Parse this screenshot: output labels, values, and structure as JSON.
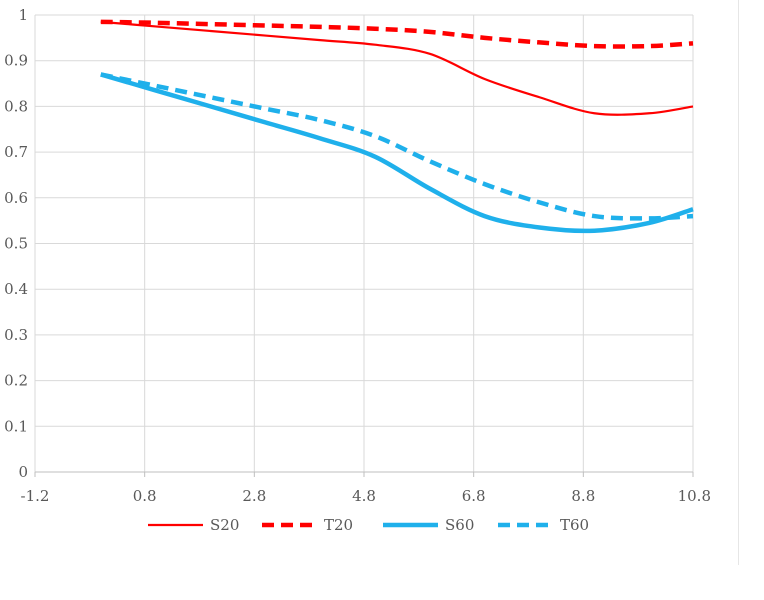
{
  "chart_data": {
    "type": "line",
    "xlim": [
      -1.2,
      10.8
    ],
    "ylim": [
      0,
      1
    ],
    "x_ticks": [
      -1.2,
      0.8,
      2.8,
      4.8,
      6.8,
      8.8,
      10.8
    ],
    "x_tick_labels": [
      "-1.2",
      "0.8",
      "2.8",
      "4.8",
      "6.8",
      "8.8",
      "10.8"
    ],
    "y_ticks": [
      0,
      0.1,
      0.2,
      0.3,
      0.4,
      0.5,
      0.6,
      0.7,
      0.8,
      0.9,
      1
    ],
    "y_tick_labels": [
      "0",
      "0.1",
      "0.2",
      "0.3",
      "0.4",
      "0.5",
      "0.6",
      "0.7",
      "0.8",
      "0.9",
      "1"
    ],
    "grid": true,
    "legend_position": "bottom",
    "series": [
      {
        "name": "S20",
        "color": "#ff0000",
        "style": "solid",
        "weight": "thin",
        "x": [
          0,
          1,
          2,
          3,
          4,
          5,
          6,
          7,
          8,
          9,
          10,
          10.8
        ],
        "y": [
          0.985,
          0.975,
          0.965,
          0.955,
          0.945,
          0.935,
          0.915,
          0.86,
          0.82,
          0.785,
          0.785,
          0.8
        ]
      },
      {
        "name": "T20",
        "color": "#ff0000",
        "style": "dashed",
        "weight": "thick",
        "x": [
          0,
          1,
          2,
          3,
          4,
          5,
          6,
          7,
          8,
          9,
          10,
          10.8
        ],
        "y": [
          0.985,
          0.983,
          0.98,
          0.977,
          0.974,
          0.97,
          0.963,
          0.95,
          0.94,
          0.932,
          0.932,
          0.938
        ]
      },
      {
        "name": "S60",
        "color": "#1fb0eb",
        "style": "solid",
        "weight": "thick",
        "x": [
          0,
          1,
          2,
          3,
          4,
          5,
          6,
          7,
          8,
          9,
          10,
          10.8
        ],
        "y": [
          0.87,
          0.835,
          0.8,
          0.765,
          0.73,
          0.69,
          0.62,
          0.56,
          0.535,
          0.528,
          0.545,
          0.575
        ]
      },
      {
        "name": "T60",
        "color": "#1fb0eb",
        "style": "dashed",
        "weight": "thick",
        "x": [
          0,
          1,
          2,
          3,
          4,
          5,
          6,
          7,
          8,
          9,
          10,
          10.8
        ],
        "y": [
          0.87,
          0.845,
          0.82,
          0.795,
          0.77,
          0.735,
          0.68,
          0.63,
          0.59,
          0.56,
          0.555,
          0.56
        ]
      }
    ]
  }
}
